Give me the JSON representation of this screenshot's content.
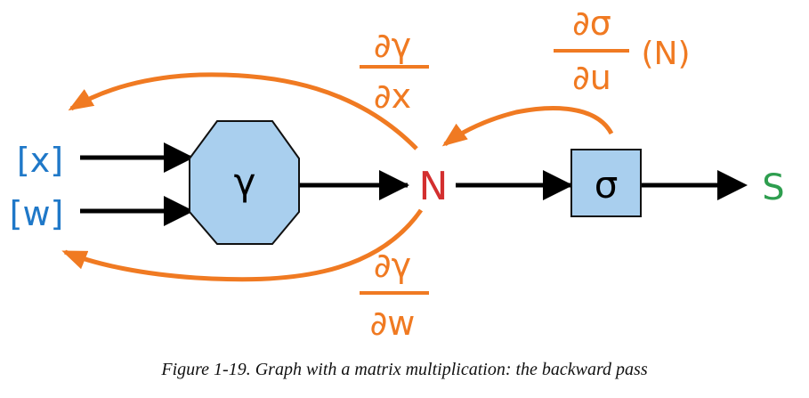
{
  "colors": {
    "input": "#1f78c8",
    "node_n": "#d32f2f",
    "output": "#2e9e4f",
    "gradient": "#f07a22",
    "op_fill": "#a9cfee",
    "arrow": "#000000"
  },
  "inputs": {
    "x_label": "[x]",
    "w_label": "[w]"
  },
  "ops": {
    "gamma_label": "γ",
    "sigma_label": "σ"
  },
  "nodes": {
    "n_label": "N",
    "s_label": "S"
  },
  "gradients": {
    "dgamma_dx": {
      "numerator": "∂γ",
      "denominator": "∂x"
    },
    "dsigma_du": {
      "numerator": "∂σ",
      "denominator": "∂u",
      "suffix": "(N)"
    },
    "dgamma_dw": {
      "numerator": "∂γ",
      "denominator": "∂w"
    }
  },
  "caption": "Figure 1-19. Graph with a matrix multiplication: the backward pass"
}
